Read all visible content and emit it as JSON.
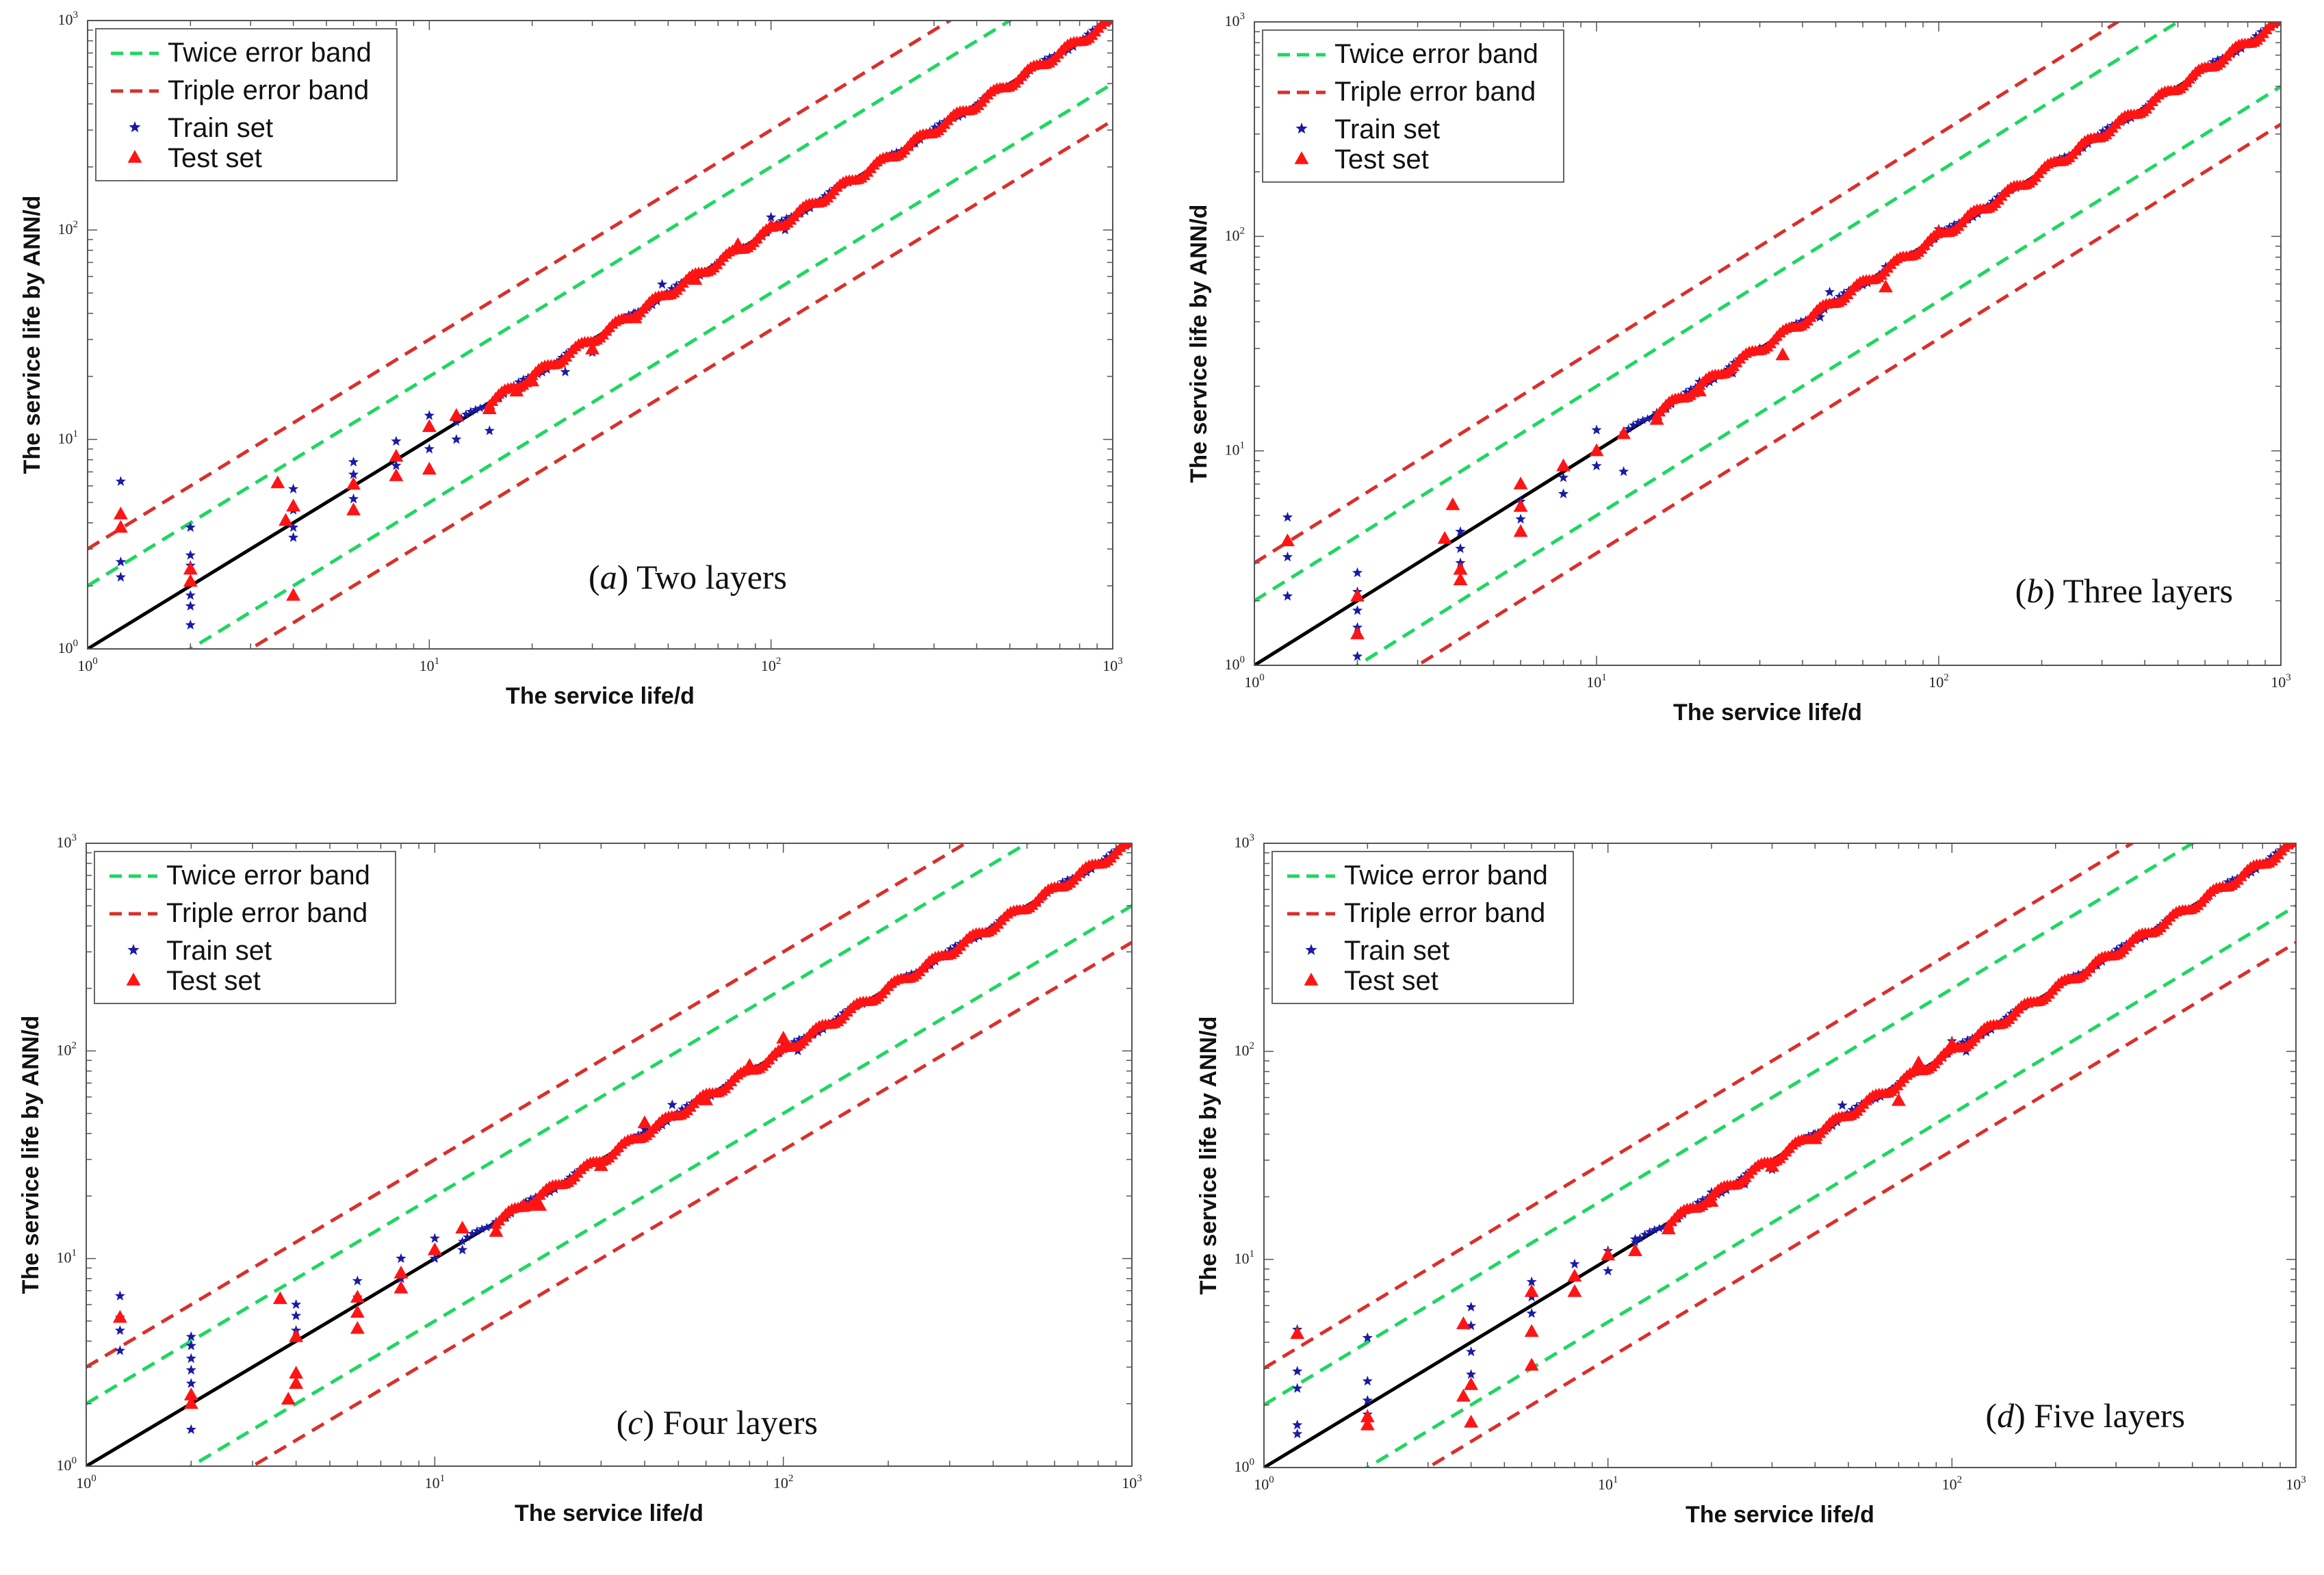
{
  "colors": {
    "twice_band": "#1ed760",
    "triple_band": "#d9302c",
    "train": "#1a1aa6",
    "test": "#ff1414",
    "identity": "#000000",
    "axes": "#555555"
  },
  "shared": {
    "xlabel": "The service life/d",
    "ylabel": "The service life by ANN/d",
    "tick_base": "10",
    "tick_exps": [
      "0",
      "1",
      "2",
      "3"
    ]
  },
  "chart_data": [
    {
      "type": "scatter",
      "title": "",
      "caption": {
        "letter": "a",
        "text": "Two layers"
      },
      "xlabel": "The service life/d",
      "ylabel": "The service life by ANN/d",
      "xscale": "log",
      "yscale": "log",
      "xlim": [
        1,
        1000
      ],
      "ylim": [
        1,
        1000
      ],
      "legend_position": "top-left",
      "legend": [
        "Twice error band",
        "Triple error band",
        "Train set",
        "Test set"
      ],
      "lines": [
        {
          "name": "identity",
          "factor": 1
        },
        {
          "name": "Twice error band",
          "factors": [
            2,
            0.5
          ]
        },
        {
          "name": "Triple error band",
          "factors": [
            3,
            0.333
          ]
        }
      ],
      "train_outliers": [
        [
          1.25,
          6.3
        ],
        [
          1.25,
          2.6
        ],
        [
          1.25,
          2.2
        ],
        [
          2,
          3.8
        ],
        [
          2,
          2.8
        ],
        [
          2,
          2.5
        ],
        [
          2,
          1.8
        ],
        [
          2,
          1.6
        ],
        [
          2,
          1.3
        ],
        [
          4,
          5.8
        ],
        [
          4,
          4.6
        ],
        [
          4,
          3.8
        ],
        [
          4,
          3.4
        ],
        [
          6,
          7.8
        ],
        [
          6,
          6.8
        ],
        [
          6,
          5.2
        ],
        [
          8,
          9.8
        ],
        [
          8,
          7.5
        ],
        [
          10,
          13
        ],
        [
          10,
          9
        ],
        [
          12,
          10
        ],
        [
          15,
          11
        ],
        [
          20,
          20
        ],
        [
          25,
          21
        ],
        [
          30,
          26
        ],
        [
          40,
          40
        ],
        [
          48,
          55
        ],
        [
          60,
          62
        ],
        [
          100,
          115
        ],
        [
          110,
          100
        ]
      ],
      "test_outliers": [
        [
          1.25,
          4.4
        ],
        [
          1.25,
          3.8
        ],
        [
          2,
          2.4
        ],
        [
          2,
          2.1
        ],
        [
          3.6,
          6.2
        ],
        [
          3.8,
          4.1
        ],
        [
          4,
          4.8
        ],
        [
          4,
          1.8
        ],
        [
          6,
          6.1
        ],
        [
          6,
          4.6
        ],
        [
          8,
          8.3
        ],
        [
          8,
          6.7
        ],
        [
          10,
          11.5
        ],
        [
          10,
          7.2
        ],
        [
          12,
          13
        ],
        [
          15,
          14
        ],
        [
          18,
          17
        ],
        [
          20,
          19
        ],
        [
          30,
          27
        ],
        [
          40,
          38
        ],
        [
          60,
          58
        ],
        [
          80,
          85
        ],
        [
          100,
          104
        ]
      ]
    },
    {
      "type": "scatter",
      "title": "",
      "caption": {
        "letter": "b",
        "text": "Three layers"
      },
      "xlabel": "The service life/d",
      "ylabel": "The service life by ANN/d",
      "xscale": "log",
      "yscale": "log",
      "xlim": [
        1,
        1000
      ],
      "ylim": [
        1,
        1000
      ],
      "legend_position": "top-left",
      "legend": [
        "Twice error band",
        "Triple error band",
        "Train set",
        "Test set"
      ],
      "lines": [
        {
          "name": "identity",
          "factor": 1
        },
        {
          "name": "Twice error band",
          "factors": [
            2,
            0.5
          ]
        },
        {
          "name": "Triple error band",
          "factors": [
            3,
            0.333
          ]
        }
      ],
      "train_outliers": [
        [
          1.25,
          4.9
        ],
        [
          1.25,
          3.2
        ],
        [
          1.25,
          2.1
        ],
        [
          2,
          2.7
        ],
        [
          2,
          2.2
        ],
        [
          2,
          1.8
        ],
        [
          2,
          1.5
        ],
        [
          2,
          1.1
        ],
        [
          4,
          4.2
        ],
        [
          4,
          3.5
        ],
        [
          4,
          3
        ],
        [
          6,
          5.8
        ],
        [
          6,
          4.8
        ],
        [
          8,
          7.5
        ],
        [
          8,
          6.3
        ],
        [
          10,
          12.5
        ],
        [
          10,
          8.5
        ],
        [
          12,
          8
        ],
        [
          15,
          15
        ],
        [
          20,
          21
        ],
        [
          25,
          23
        ],
        [
          30,
          30
        ],
        [
          45,
          42
        ],
        [
          48,
          55
        ],
        [
          70,
          72
        ],
        [
          100,
          108
        ]
      ],
      "test_outliers": [
        [
          1.25,
          3.8
        ],
        [
          2,
          2.1
        ],
        [
          2,
          1.4
        ],
        [
          3.8,
          5.6
        ],
        [
          3.6,
          3.9
        ],
        [
          4,
          2.5
        ],
        [
          4,
          2.8
        ],
        [
          6,
          7
        ],
        [
          6,
          5.5
        ],
        [
          6,
          4.2
        ],
        [
          8,
          8.5
        ],
        [
          10,
          10
        ],
        [
          12,
          12
        ],
        [
          15,
          14
        ],
        [
          20,
          19
        ],
        [
          35,
          28
        ],
        [
          70,
          58
        ],
        [
          100,
          105
        ]
      ]
    },
    {
      "type": "scatter",
      "title": "",
      "caption": {
        "letter": "c",
        "text": "Four layers"
      },
      "xlabel": "The service life/d",
      "ylabel": "The service life by ANN/d",
      "xscale": "log",
      "yscale": "log",
      "xlim": [
        1,
        1000
      ],
      "ylim": [
        1,
        1000
      ],
      "legend_position": "top-left",
      "legend": [
        "Twice error band",
        "Triple error band",
        "Train set",
        "Test set"
      ],
      "lines": [
        {
          "name": "identity",
          "factor": 1
        },
        {
          "name": "Twice error band",
          "factors": [
            2,
            0.5
          ]
        },
        {
          "name": "Triple error band",
          "factors": [
            3,
            0.333
          ]
        }
      ],
      "train_outliers": [
        [
          1.25,
          6.6
        ],
        [
          1.25,
          5.2
        ],
        [
          1.25,
          4.5
        ],
        [
          1.25,
          3.6
        ],
        [
          2,
          4.2
        ],
        [
          2,
          3.8
        ],
        [
          2,
          3.3
        ],
        [
          2,
          2.9
        ],
        [
          2,
          2.5
        ],
        [
          2,
          1.5
        ],
        [
          4,
          6
        ],
        [
          4,
          5.3
        ],
        [
          4,
          4.5
        ],
        [
          6,
          7.8
        ],
        [
          6,
          6.5
        ],
        [
          8,
          10
        ],
        [
          8,
          8
        ],
        [
          10,
          12.5
        ],
        [
          10,
          10
        ],
        [
          12,
          11
        ],
        [
          15,
          15
        ],
        [
          20,
          20
        ],
        [
          25,
          24
        ],
        [
          30,
          28
        ],
        [
          40,
          42
        ],
        [
          48,
          55
        ],
        [
          100,
          110
        ],
        [
          110,
          100
        ]
      ],
      "test_outliers": [
        [
          1.25,
          5.2
        ],
        [
          2,
          2.2
        ],
        [
          2,
          2
        ],
        [
          3.6,
          6.4
        ],
        [
          3.8,
          2.1
        ],
        [
          4,
          2.8
        ],
        [
          4,
          2.5
        ],
        [
          4,
          4.2
        ],
        [
          6,
          6.5
        ],
        [
          6,
          5.5
        ],
        [
          6,
          4.6
        ],
        [
          8,
          8.5
        ],
        [
          8,
          7.2
        ],
        [
          10,
          11
        ],
        [
          12,
          14
        ],
        [
          15,
          13.5
        ],
        [
          18,
          18
        ],
        [
          20,
          18
        ],
        [
          30,
          28
        ],
        [
          40,
          45
        ],
        [
          60,
          58
        ],
        [
          100,
          115
        ],
        [
          80,
          85
        ]
      ]
    },
    {
      "type": "scatter",
      "title": "",
      "caption": {
        "letter": "d",
        "text": "Five layers"
      },
      "xlabel": "The service life/d",
      "ylabel": "The service life by ANN/d",
      "xscale": "log",
      "yscale": "log",
      "xlim": [
        1,
        1000
      ],
      "ylim": [
        1,
        1000
      ],
      "legend_position": "top-left",
      "legend": [
        "Twice error band",
        "Triple error band",
        "Train set",
        "Test set"
      ],
      "lines": [
        {
          "name": "identity",
          "factor": 1
        },
        {
          "name": "Twice error band",
          "factors": [
            2,
            0.5
          ]
        },
        {
          "name": "Triple error band",
          "factors": [
            3,
            0.333
          ]
        }
      ],
      "train_outliers": [
        [
          1.25,
          4.6
        ],
        [
          1.25,
          2.9
        ],
        [
          1.25,
          2.4
        ],
        [
          1.25,
          1.6
        ],
        [
          1.25,
          1.45
        ],
        [
          2,
          4.2
        ],
        [
          2,
          2.6
        ],
        [
          2,
          2.1
        ],
        [
          2,
          1.8
        ],
        [
          4,
          5.9
        ],
        [
          4,
          4.8
        ],
        [
          4,
          3.6
        ],
        [
          4,
          2.8
        ],
        [
          6,
          7.8
        ],
        [
          6,
          6.6
        ],
        [
          6,
          5.5
        ],
        [
          8,
          9.5
        ],
        [
          10,
          11
        ],
        [
          10,
          8.8
        ],
        [
          12,
          12.5
        ],
        [
          15,
          14
        ],
        [
          20,
          21
        ],
        [
          25,
          23
        ],
        [
          30,
          27
        ],
        [
          40,
          40
        ],
        [
          48,
          55
        ],
        [
          100,
          112
        ],
        [
          110,
          100
        ]
      ],
      "test_outliers": [
        [
          1.25,
          4.4
        ],
        [
          2,
          1.6
        ],
        [
          2,
          1.75
        ],
        [
          3.8,
          4.9
        ],
        [
          3.8,
          2.2
        ],
        [
          4,
          2.5
        ],
        [
          4,
          1.65
        ],
        [
          6,
          7
        ],
        [
          6,
          4.5
        ],
        [
          6,
          3.1
        ],
        [
          8,
          8.3
        ],
        [
          8,
          7
        ],
        [
          10,
          10.5
        ],
        [
          12,
          11
        ],
        [
          15,
          14
        ],
        [
          20,
          19
        ],
        [
          30,
          28
        ],
        [
          40,
          38
        ],
        [
          70,
          58
        ],
        [
          80,
          88
        ],
        [
          100,
          108
        ]
      ]
    }
  ]
}
